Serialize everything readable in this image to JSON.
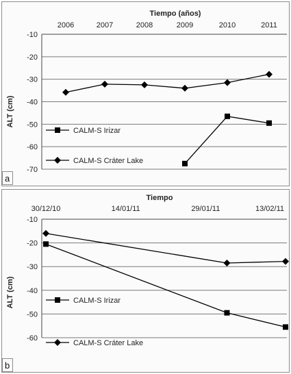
{
  "chart_data": [
    {
      "panel_label": "a",
      "type": "line",
      "xlabel": "Tiempo (años)",
      "ylabel": "ALT (cm)",
      "categories": [
        "2006",
        "2007",
        "2008",
        "2009",
        "2010",
        "2011"
      ],
      "ylim": [
        -70,
        -10
      ],
      "yticks": [
        "-10",
        "-20",
        "-30",
        "-40",
        "-50",
        "-60",
        "-70"
      ],
      "grid": true,
      "legend_position": "bottom-left",
      "series": [
        {
          "name": "CALM-S Irizar",
          "marker": "square",
          "values": [
            null,
            null,
            null,
            -67.5,
            -46.5,
            -49.5
          ]
        },
        {
          "name": "CALM-S Cráter Lake",
          "marker": "diamond",
          "values": [
            -35.8,
            -32.2,
            -32.5,
            -34.0,
            -31.5,
            -27.8
          ]
        }
      ]
    },
    {
      "panel_label": "b",
      "type": "line",
      "xlabel": "Tiempo",
      "ylabel": "ALT (cm)",
      "xticks": [
        "30/12/10",
        "14/01/11",
        "29/01/11",
        "13/02/11"
      ],
      "ylim": [
        -60,
        -10
      ],
      "yticks": [
        "-10",
        "-20",
        "-30",
        "-40",
        "-50",
        "-60"
      ],
      "grid": true,
      "legend_position": "bottom-left",
      "series": [
        {
          "name": "CALM-S Irizar",
          "marker": "square",
          "x": [
            "30/12/10",
            "02/02/11",
            "13/02/11"
          ],
          "values": [
            -20.5,
            -49.5,
            -55.5
          ]
        },
        {
          "name": "CALM-S Cráter Lake",
          "marker": "diamond",
          "x": [
            "30/12/10",
            "02/02/11",
            "13/02/11"
          ],
          "values": [
            -16.0,
            -28.5,
            -27.8
          ]
        }
      ]
    }
  ]
}
